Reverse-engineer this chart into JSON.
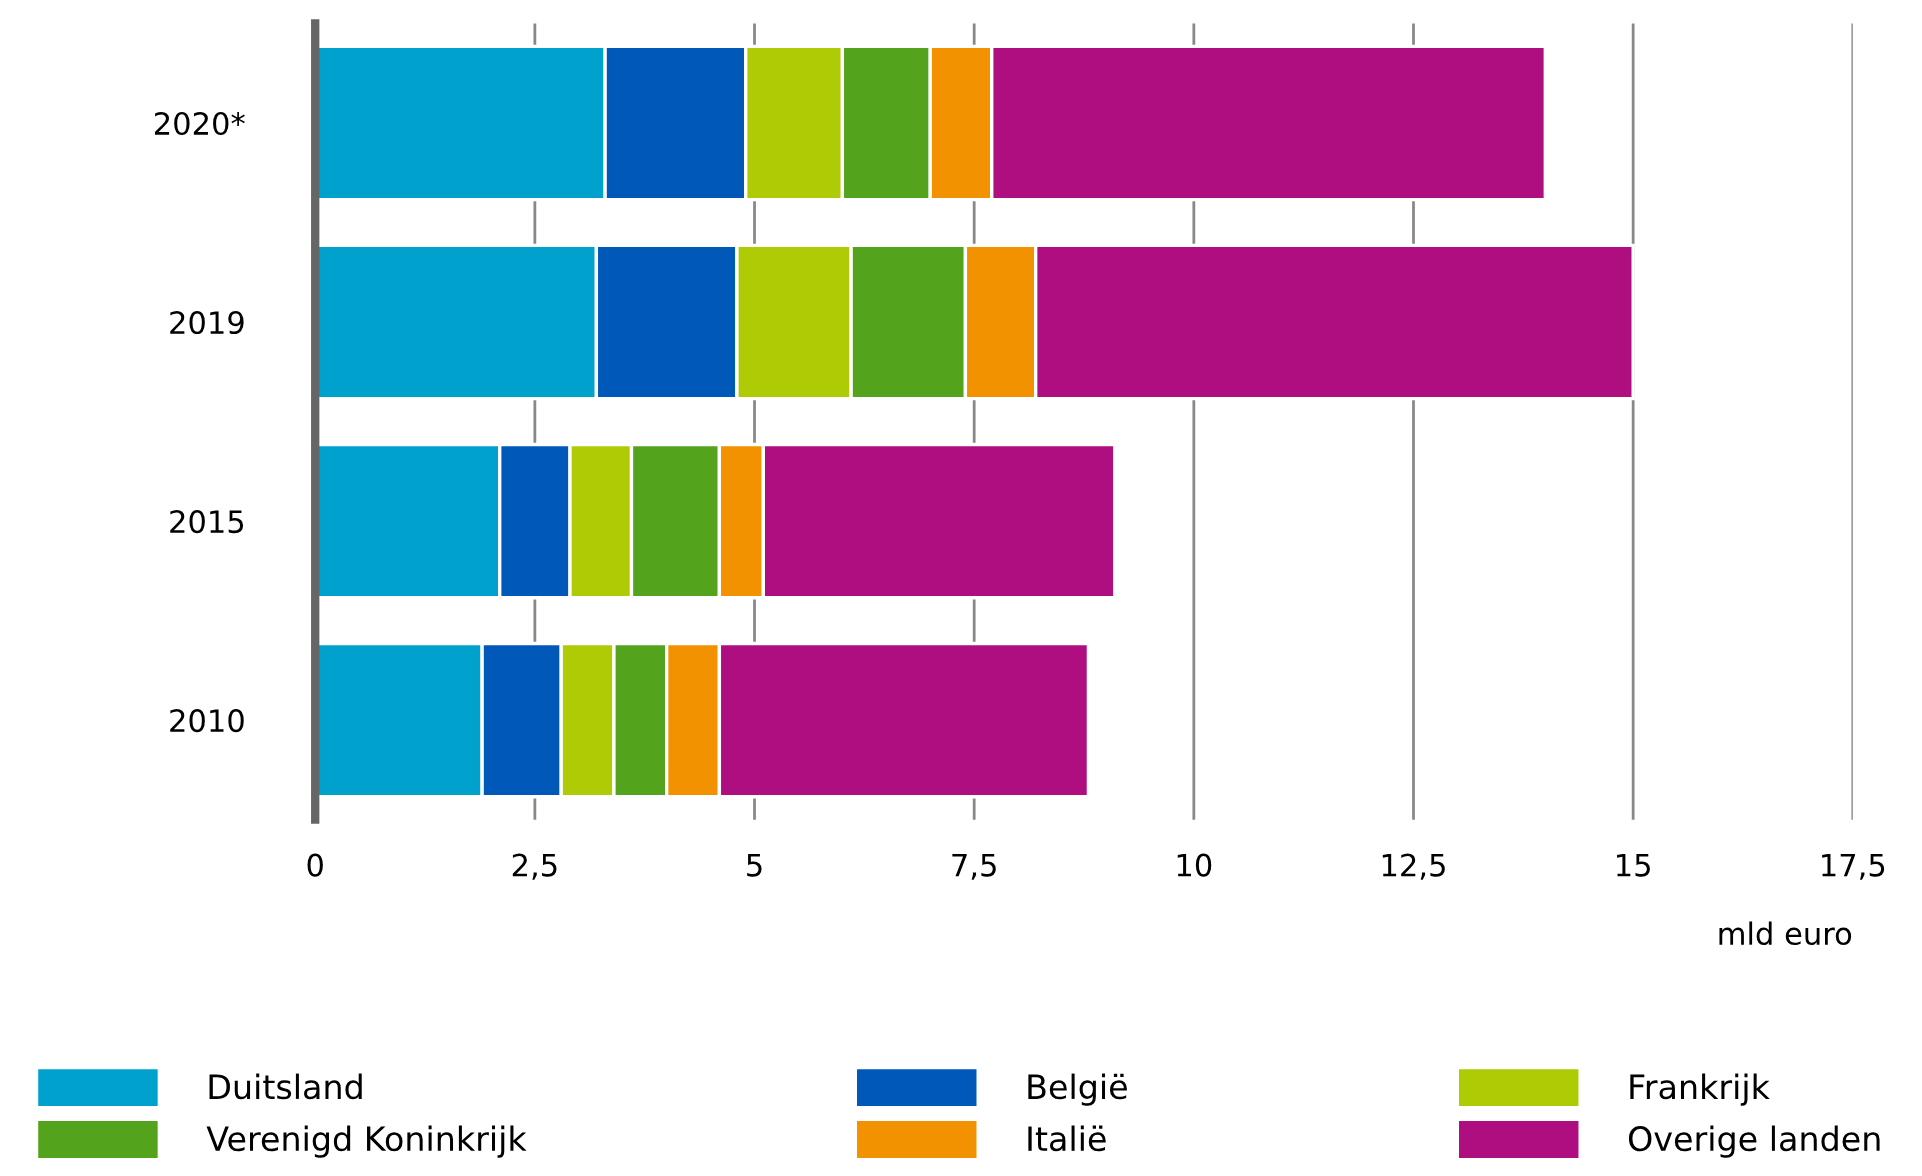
{
  "chart_data": {
    "type": "bar",
    "orientation": "horizontal",
    "stacked": true,
    "categories": [
      "2020*",
      "2019",
      "2015",
      "2010"
    ],
    "series": [
      {
        "name": "Duitsland",
        "color": "#00a1cd",
        "values": [
          3.3,
          3.2,
          2.1,
          1.9
        ]
      },
      {
        "name": "België",
        "color": "#0058b8",
        "values": [
          1.6,
          1.6,
          0.8,
          0.9
        ]
      },
      {
        "name": "Frankrijk",
        "color": "#afcb05",
        "values": [
          1.1,
          1.3,
          0.7,
          0.6
        ]
      },
      {
        "name": "Verenigd Koninkrijk",
        "color": "#53a31d",
        "values": [
          1.0,
          1.3,
          1.0,
          0.6
        ]
      },
      {
        "name": "Italië",
        "color": "#f39200",
        "values": [
          0.7,
          0.8,
          0.5,
          0.6
        ]
      },
      {
        "name": "Overige landen",
        "color": "#af0e80",
        "values": [
          6.3,
          6.8,
          4.0,
          4.2
        ]
      }
    ],
    "xlabel": "mld euro",
    "xlim": [
      0,
      17.5
    ],
    "xticks": [
      0,
      {
        "value": 2.5,
        "label": "2,5"
      },
      5,
      {
        "value": 7.5,
        "label": "7,5"
      },
      10,
      {
        "value": 12.5,
        "label": "12,5"
      },
      15,
      {
        "value": 17.5,
        "label": "17,5"
      }
    ],
    "grid": "x",
    "legend": "bottom"
  }
}
